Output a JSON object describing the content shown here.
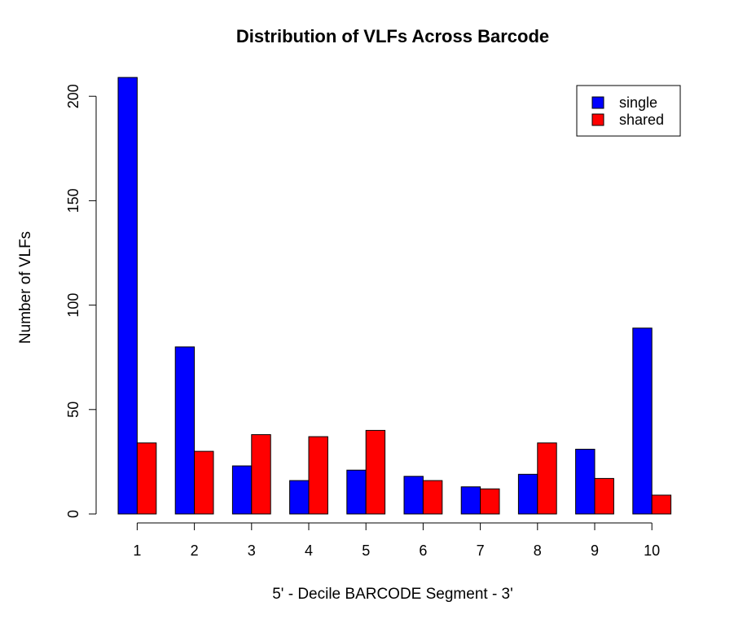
{
  "chart_data": {
    "type": "bar",
    "title": "Distribution of VLFs Across Barcode",
    "xlabel": "5' - Decile BARCODE Segment - 3'",
    "ylabel": "Number of VLFs",
    "categories": [
      "1",
      "2",
      "3",
      "4",
      "5",
      "6",
      "7",
      "8",
      "9",
      "10"
    ],
    "series": [
      {
        "name": "single",
        "color": "#0000ff",
        "values": [
          209,
          80,
          23,
          16,
          21,
          18,
          13,
          19,
          31,
          89
        ]
      },
      {
        "name": "shared",
        "color": "#ff0000",
        "values": [
          34,
          30,
          38,
          37,
          40,
          16,
          12,
          34,
          17,
          9
        ]
      }
    ],
    "yticks": [
      0,
      50,
      100,
      150,
      200
    ],
    "ylim": [
      0,
      209
    ],
    "grid": false,
    "legend_position": "top-right"
  }
}
